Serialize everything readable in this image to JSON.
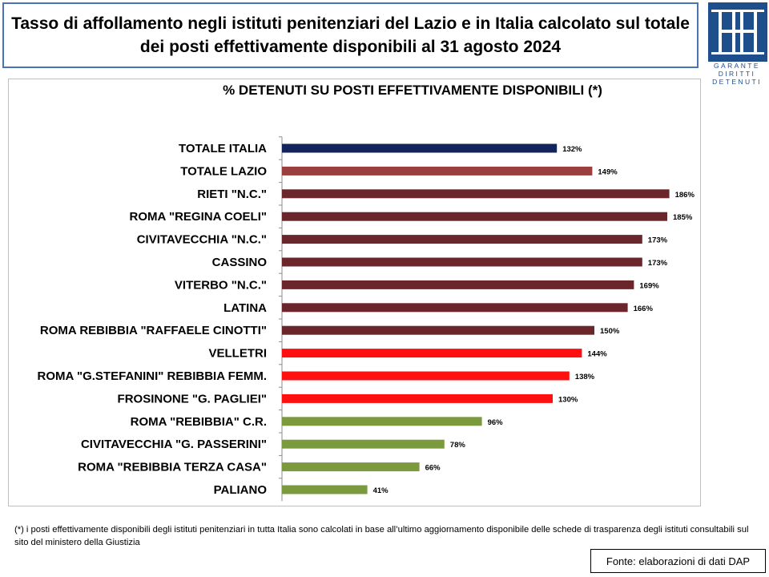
{
  "header": {
    "title_line1": "Tasso di affollamento negli istituti penitenziari del Lazio e in Italia calcolato sul totale",
    "title_line2": "dei posti effettivamente disponibili al 31 agosto 2024"
  },
  "logo": {
    "icon": "garante-logo-icon",
    "text_lines": [
      "GARANTE",
      "DIRITTI",
      "DETENUTI"
    ],
    "color": "#1f4e8c"
  },
  "chart_data": {
    "type": "bar",
    "orientation": "horizontal",
    "title": "% DETENUTI SU POSTI EFFETTIVAMENTE DISPONIBILI (*)",
    "xlabel": "",
    "ylabel": "",
    "xlim": [
      0,
      200
    ],
    "grid": false,
    "categories": [
      "TOTALE ITALIA",
      "TOTALE LAZIO",
      "RIETI \"N.C.\"",
      "ROMA \"REGINA COELI\"",
      "CIVITAVECCHIA \"N.C.\"",
      "CASSINO",
      "VITERBO \"N.C.\"",
      "LATINA",
      "ROMA REBIBBIA \"RAFFAELE CINOTTI\"",
      "VELLETRI",
      "ROMA \"G.STEFANINI\" REBIBBIA FEMM.",
      "FROSINONE \"G. PAGLIEI\"",
      "ROMA \"REBIBBIA\" C.R.",
      "CIVITAVECCHIA \"G. PASSERINI\"",
      "ROMA \"REBIBBIA TERZA CASA\"",
      "PALIANO"
    ],
    "values": [
      132,
      149,
      186,
      185,
      173,
      173,
      169,
      166,
      150,
      144,
      138,
      130,
      96,
      78,
      66,
      41
    ],
    "value_labels": [
      "132%",
      "149%",
      "186%",
      "185%",
      "173%",
      "173%",
      "169%",
      "166%",
      "150%",
      "144%",
      "138%",
      "130%",
      "96%",
      "78%",
      "66%",
      "41%"
    ],
    "colors": [
      "#13235b",
      "#9b3e3e",
      "#6a262b",
      "#6a262b",
      "#6a262b",
      "#6a262b",
      "#6a262b",
      "#6a262b",
      "#6a262b",
      "#ff1010",
      "#ff1010",
      "#ff1010",
      "#7b9a3e",
      "#7b9a3e",
      "#7b9a3e",
      "#7b9a3e"
    ]
  },
  "footnote": "(*) i posti effettivamente disponibili  degli istituti penitenziari in tutta Italia sono calcolati in base all’ultimo aggiornamento disponibile  delle schede di trasparenza degli istituti consultabili sul sito del ministero della Giustizia",
  "source": "Fonte: elaborazioni di dati DAP"
}
